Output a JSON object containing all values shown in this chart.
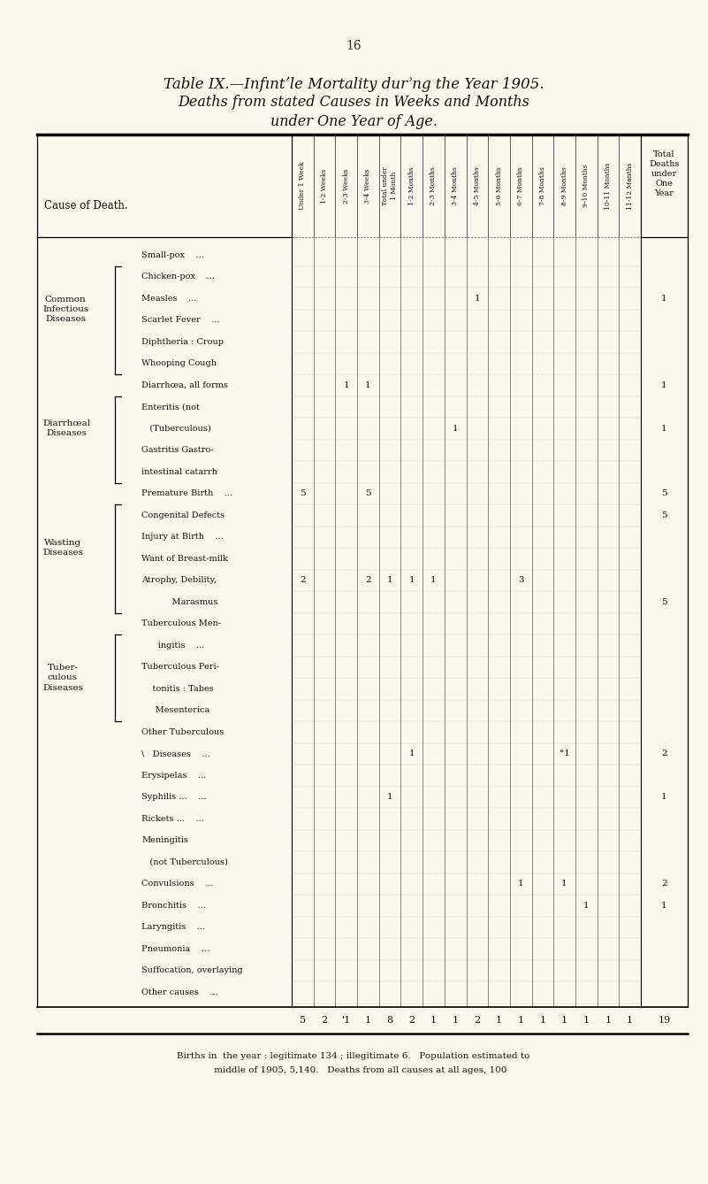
{
  "page_number": "16",
  "title_line1": "Table IX.—Infıntʼle Mortality durʾng the Year 1905.",
  "title_line2": "Deaths from stated Causes in Weeks and Months",
  "title_line3": "under One Year of Age.",
  "bg_color": "#faf8ec",
  "col_headers": [
    "Under 1 Week",
    "1-2 Weeks",
    "2-3 Weeks",
    "3-4 Weeks",
    "Total under\n1 Month",
    "1-2 Months",
    "2-3 Months",
    "3-4 Months",
    "4-5 Months",
    "5-6 Months",
    "6-7 Months",
    "7-8 Months",
    "8-9 Months",
    "9-10 Months",
    "10-11 Months",
    "11-12 Months"
  ],
  "rows": [
    {
      "group": "Common\nInfectious\nDiseases",
      "bracket": "none",
      "label": "Small-pox",
      "dots": "...",
      "v": [
        "",
        "",
        "",
        "",
        "",
        "",
        "",
        "",
        "",
        "",
        "",
        "",
        "",
        "",
        "",
        "",
        ""
      ]
    },
    {
      "group": "",
      "bracket": "open",
      "label": "Chicken-pox",
      "dots": "...",
      "v": [
        "",
        "",
        "",
        "",
        "",
        "",
        "",
        "",
        "",
        "",
        "",
        "",
        "",
        "",
        "",
        "",
        ""
      ]
    },
    {
      "group": "",
      "bracket": "mid",
      "label": "Measles",
      "dots": "...",
      "v": [
        "",
        "",
        "",
        "",
        "",
        "",
        "",
        "",
        "1",
        "",
        "",
        "",
        "",
        "",
        "",
        "",
        "1"
      ]
    },
    {
      "group": "",
      "bracket": "mid",
      "label": "Scarlet Fever",
      "dots": "...",
      "v": [
        "",
        "",
        "",
        "",
        "",
        "",
        "",
        "",
        "",
        "",
        "",
        "",
        "",
        "",
        "",
        "",
        ""
      ]
    },
    {
      "group": "",
      "bracket": "mid",
      "label": "Diphtheria : Croup",
      "dots": "",
      "v": [
        "",
        "",
        "",
        "",
        "",
        "",
        "",
        "",
        "",
        "",
        "",
        "",
        "",
        "",
        "",
        "",
        ""
      ]
    },
    {
      "group": "",
      "bracket": "close",
      "label": "Whooping Cough",
      "dots": "",
      "v": [
        "",
        "",
        "",
        "",
        "",
        "",
        "",
        "",
        "",
        "",
        "",
        "",
        "",
        "",
        "",
        "",
        ""
      ]
    },
    {
      "group": "Diarrhœal\nDiseases",
      "bracket": "none",
      "label": "Diarrhœa, all forms",
      "dots": "",
      "v": [
        "",
        "",
        "1",
        "1",
        "",
        "",
        "",
        "",
        "",
        "",
        "",
        "",
        "",
        "",
        "",
        "",
        "1"
      ]
    },
    {
      "group": "",
      "bracket": "open",
      "label": "Enteritis (not",
      "dots": "",
      "v": [
        "",
        "",
        "",
        "",
        "",
        "",
        "",
        "",
        "",
        "",
        "",
        "",
        "",
        "",
        "",
        "",
        ""
      ]
    },
    {
      "group": "",
      "bracket": "mid",
      "label": "   (Tuberculous)",
      "dots": "",
      "v": [
        "",
        "",
        "",
        "",
        "",
        "",
        "",
        "1",
        "",
        "",
        "",
        "",
        "",
        "",
        "",
        "",
        "1"
      ]
    },
    {
      "group": "",
      "bracket": "close",
      "label": "Gastritis Gastro-",
      "dots": "",
      "v": [
        "",
        "",
        "",
        "",
        "",
        "",
        "",
        "",
        "",
        "",
        "",
        "",
        "",
        "",
        "",
        "",
        ""
      ]
    },
    {
      "group": "",
      "bracket": "close2",
      "label": "intestinal catarrh",
      "dots": "",
      "v": [
        "",
        "",
        "",
        "",
        "",
        "",
        "",
        "",
        "",
        "",
        "",
        "",
        "",
        "",
        "",
        "",
        ""
      ]
    },
    {
      "group": "Wasting\nDiseases",
      "bracket": "none",
      "label": "Premature Birth",
      "dots": "...",
      "v": [
        "5",
        "",
        "",
        "5",
        "",
        "",
        "",
        "",
        "",
        "",
        "",
        "",
        "",
        "",
        "",
        "",
        "5"
      ]
    },
    {
      "group": "",
      "bracket": "open",
      "label": "Congenital Defects",
      "dots": "",
      "v": [
        "",
        "",
        "",
        "",
        "",
        "",
        "",
        "",
        "",
        "",
        "",
        "",
        "",
        "",
        "",
        "",
        "5"
      ]
    },
    {
      "group": "",
      "bracket": "mid",
      "label": "Injury at Birth",
      "dots": "...",
      "v": [
        "",
        "",
        "",
        "",
        "",
        "",
        "",
        "",
        "",
        "",
        "",
        "",
        "",
        "",
        "",
        "",
        ""
      ]
    },
    {
      "group": "",
      "bracket": "mid",
      "label": "Want of Breast-milk",
      "dots": "",
      "v": [
        "",
        "",
        "",
        "",
        "",
        "",
        "",
        "",
        "",
        "",
        "",
        "",
        "",
        "",
        "",
        "",
        ""
      ]
    },
    {
      "group": "",
      "bracket": "close",
      "label": "Atrophy, Debility,",
      "dots": "",
      "v": [
        "2",
        "",
        "",
        "2",
        "1",
        "1",
        "1",
        "",
        "",
        "",
        "3",
        "",
        "",
        "",
        "",
        "",
        ""
      ]
    },
    {
      "group": "",
      "bracket": "close2",
      "label": "           Marasmus",
      "dots": "",
      "v": [
        "",
        "",
        "",
        "",
        "",
        "",
        "",
        "",
        "",
        "",
        "",
        "",
        "",
        "",
        "",
        "",
        "5"
      ]
    },
    {
      "group": "Tuber-\nculous\nDiseases",
      "bracket": "none",
      "label": "Tuberculous Men-",
      "dots": "",
      "v": [
        "",
        "",
        "",
        "",
        "",
        "",
        "",
        "",
        "",
        "",
        "",
        "",
        "",
        "",
        "",
        "",
        ""
      ]
    },
    {
      "group": "",
      "bracket": "open",
      "label": "      ingitis",
      "dots": "...",
      "v": [
        "",
        "",
        "",
        "",
        "",
        "",
        "",
        "",
        "",
        "",
        "",
        "",
        "",
        "",
        "",
        "",
        ""
      ]
    },
    {
      "group": "",
      "bracket": "open",
      "label": "Tuberculous Peri-",
      "dots": "",
      "v": [
        "",
        "",
        "",
        "",
        "",
        "",
        "",
        "",
        "",
        "",
        "",
        "",
        "",
        "",
        "",
        "",
        ""
      ]
    },
    {
      "group": "",
      "bracket": "mid",
      "label": "    tonitis : Tabes",
      "dots": "",
      "v": [
        "",
        "",
        "",
        "",
        "",
        "",
        "",
        "",
        "",
        "",
        "",
        "",
        "",
        "",
        "",
        "",
        ""
      ]
    },
    {
      "group": "",
      "bracket": "close",
      "label": "     Mesenterica",
      "dots": "",
      "v": [
        "",
        "",
        "",
        "",
        "",
        "",
        "",
        "",
        "",
        "",
        "",
        "",
        "",
        "",
        "",
        "",
        ""
      ]
    },
    {
      "group": "",
      "bracket": "none",
      "label": "Other Tuberculous",
      "dots": "",
      "v": [
        "",
        "",
        "",
        "",
        "",
        "",
        "",
        "",
        "",
        "",
        "",
        "",
        "",
        "",
        "",
        "",
        ""
      ]
    },
    {
      "group": "",
      "bracket": "none",
      "label": "\\   Diseases",
      "dots": "...",
      "v": [
        "",
        "",
        "",
        "",
        "",
        "1",
        "",
        "",
        "",
        "",
        "",
        "",
        "°1",
        "",
        "",
        "",
        "2"
      ]
    },
    {
      "group": "",
      "bracket": "none",
      "label": "Erysipelas",
      "dots": "...",
      "v": [
        "",
        "",
        "",
        "",
        "",
        "",
        "",
        "",
        "",
        "",
        "",
        "",
        "",
        "",
        "",
        "",
        ""
      ]
    },
    {
      "group": "",
      "bracket": "none",
      "label": "Syphilis ...",
      "dots": "...",
      "v": [
        "",
        "",
        "",
        "",
        "1",
        "",
        "",
        "",
        "",
        "",
        "",
        "",
        "",
        "",
        "",
        "",
        "1"
      ]
    },
    {
      "group": "",
      "bracket": "none",
      "label": "Rickets ...",
      "dots": "...",
      "v": [
        "",
        "",
        "",
        "",
        "",
        "",
        "",
        "",
        "",
        "",
        "",
        "",
        "",
        "",
        "",
        "",
        ""
      ]
    },
    {
      "group": "",
      "bracket": "none",
      "label": "Meningitis",
      "dots": "",
      "v": [
        "",
        "",
        "",
        "",
        "",
        "",
        "",
        "",
        "",
        "",
        "",
        "",
        "",
        "",
        "",
        "",
        ""
      ]
    },
    {
      "group": "",
      "bracket": "none",
      "label": "   (not Tuberculous)",
      "dots": "",
      "v": [
        "",
        "",
        "",
        "",
        "",
        "",
        "",
        "",
        "",
        "",
        "",
        "",
        "",
        "",
        "",
        "",
        ""
      ]
    },
    {
      "group": "",
      "bracket": "none",
      "label": "Convulsions",
      "dots": "...",
      "v": [
        "",
        "",
        "",
        "",
        "",
        "",
        "",
        "",
        "",
        "",
        "1",
        "",
        "1",
        "",
        "",
        "",
        "2"
      ]
    },
    {
      "group": "",
      "bracket": "none",
      "label": "Bronchitis",
      "dots": "...",
      "v": [
        "",
        "",
        "",
        "",
        "",
        "",
        "",
        "",
        "",
        "",
        "",
        "",
        "",
        "1",
        "",
        "",
        "1"
      ]
    },
    {
      "group": "",
      "bracket": "none",
      "label": "Laryngitis",
      "dots": "...",
      "v": [
        "",
        "",
        "",
        "",
        "",
        "",
        "",
        "",
        "",
        "",
        "",
        "",
        "",
        "",
        "",
        "",
        ""
      ]
    },
    {
      "group": "",
      "bracket": "none",
      "label": "Pneumonia",
      "dots": "...",
      "v": [
        "",
        "",
        "",
        "",
        "",
        "",
        "",
        "",
        "",
        "",
        "",
        "",
        "",
        "",
        "",
        "",
        ""
      ]
    },
    {
      "group": "",
      "bracket": "none",
      "label": "Suffocation, overlaying",
      "dots": "",
      "v": [
        "",
        "",
        "",
        "",
        "",
        "",
        "",
        "",
        "",
        "",
        "",
        "",
        "",
        "",
        "",
        "",
        ""
      ]
    },
    {
      "group": "",
      "bracket": "none",
      "label": "Other causes",
      "dots": "...",
      "v": [
        "",
        "",
        "",
        "",
        "",
        "",
        "",
        "",
        "",
        "",
        "",
        "",
        "",
        "",
        "",
        "",
        ""
      ]
    }
  ],
  "totals": [
    "5",
    "2",
    "'1",
    "1",
    "8",
    "2",
    "1",
    "1",
    "2",
    "1",
    "1",
    "1",
    "1",
    "1",
    "1",
    "1",
    "19"
  ],
  "footer_line1": "Births in  the year : legitimate 134 ; illegitimate 6.   Population estimated to",
  "footer_line2": "     middle of 1905, 5,140.   Deaths from all causes at all ages, 100"
}
